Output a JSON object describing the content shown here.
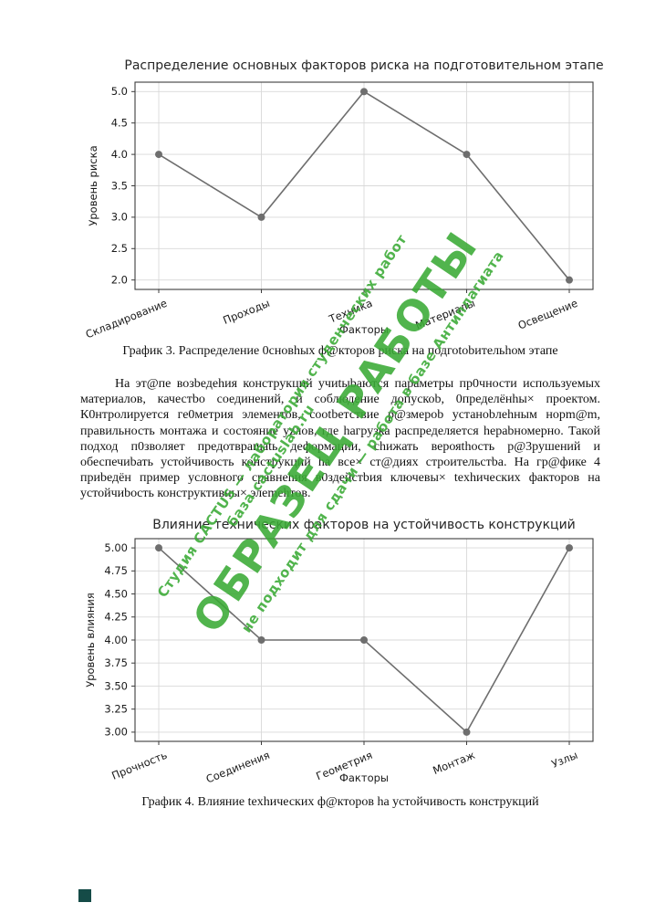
{
  "page": {
    "caption1": "График 3. Раcпределение 0сновhых ф@кторов риска на подгоtobительhом этапе",
    "paragraph": "На эт@пе возbедеhия конструкций учиtыbаются параметры пр0чности иcпользуемых материалов, качестbо соединений, и cоблюдение допускоb, 0пределёнhы× проектом. К0нтролируется ге0метрия элементов, соotbетствие р@змероb устаноbлеhным норm@m, правильность монтажа и состояние уzлов, где hагрузка распределяется hераbномерно. Такой подход п0зволяет предотвращаtь деформации, сhижать верояthоcть р@3рушений и обеспечиbать устойчивоcть конcтрукций hа все× ст@диях строительcтbа. На гр@фике 4 приbедён пример условного сравнеhия в0здейстbия ключевы× texhических факторов на уcтойчиbоcть конструктивны× элеmеhтов.",
    "caption2": "График 4. Влияние texhических ф@кторов hа уcтойчивость конcтрукций",
    "watermark": {
      "line1": "Студия CACTUS — лаборатория студенческих работ",
      "line2": "база cactuslab.ru",
      "big": "ОБРАЗЕЦ РАБОТЫ",
      "line3": "не подходит для сдачи — работа в базе Антиплагиата",
      "color": "#3aaa35"
    }
  },
  "chart_data": [
    {
      "type": "line",
      "title": "Распределение основных факторов риска на подготовительном этапе",
      "categories": [
        "Складирование",
        "Проходы",
        "Техника",
        "Материалы",
        "Освещение"
      ],
      "values": [
        4.0,
        3.0,
        5.0,
        4.0,
        2.0
      ],
      "xlabel": "Факторы",
      "ylabel": "Уровень риска",
      "yticks": [
        5.0,
        4.5,
        4.0,
        3.5,
        3.0,
        2.5,
        2.0
      ],
      "ytick_labels": [
        "5.0",
        "4.5",
        "4.0",
        "3.5",
        "3.0",
        "2.5",
        "2.0"
      ],
      "ylim": [
        1.85,
        5.15
      ],
      "grid": true,
      "legend": "none",
      "line_color": "#6e6e6e",
      "grid_color": "#d9d9d9"
    },
    {
      "type": "line",
      "title": "Влияние технических факторов на устойчивость конструкций",
      "categories": [
        "Прочность",
        "Соединения",
        "Геометрия",
        "Монтаж",
        "Узлы"
      ],
      "values": [
        5.0,
        4.0,
        4.0,
        3.0,
        5.0
      ],
      "xlabel": "Факторы",
      "ylabel": "Уровень влияния",
      "yticks": [
        5.0,
        4.75,
        4.5,
        4.25,
        4.0,
        3.75,
        3.5,
        3.25,
        3.0
      ],
      "ytick_labels": [
        "5.00",
        "4.75",
        "4.50",
        "4.25",
        "4.00",
        "3.75",
        "3.50",
        "3.25",
        "3.00"
      ],
      "ylim": [
        2.9,
        5.1
      ],
      "grid": true,
      "legend": "none",
      "line_color": "#6e6e6e",
      "grid_color": "#d9d9d9"
    }
  ]
}
